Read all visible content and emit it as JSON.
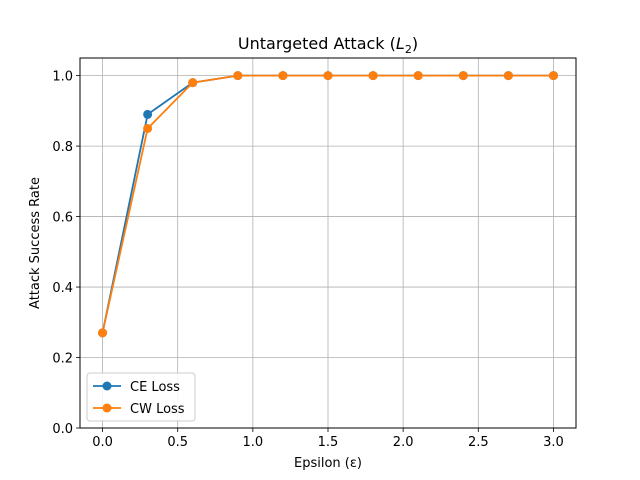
{
  "chart_data": {
    "type": "line",
    "title": "Untargeted Attack (L₂)",
    "title_parts": {
      "prefix": "Untargeted Attack (",
      "math_base": "L",
      "math_sub": "2",
      "suffix": ")"
    },
    "xlabel": "Epsilon (ε)",
    "ylabel": "Attack Success Rate",
    "x": [
      0.0,
      0.3,
      0.6,
      0.9,
      1.2,
      1.5,
      1.8,
      2.1,
      2.4,
      2.7,
      3.0
    ],
    "series": [
      {
        "name": "CE Loss",
        "color": "#1f77b4",
        "values": [
          0.27,
          0.89,
          0.98,
          1.0,
          1.0,
          1.0,
          1.0,
          1.0,
          1.0,
          1.0,
          1.0
        ]
      },
      {
        "name": "CW Loss",
        "color": "#ff7f0e",
        "values": [
          0.27,
          0.85,
          0.98,
          1.0,
          1.0,
          1.0,
          1.0,
          1.0,
          1.0,
          1.0,
          1.0
        ]
      }
    ],
    "xlim": [
      -0.15,
      3.15
    ],
    "ylim": [
      0.0,
      1.05
    ],
    "xticks": [
      0.0,
      0.5,
      1.0,
      1.5,
      2.0,
      2.5,
      3.0
    ],
    "xtick_labels": [
      "0.0",
      "0.5",
      "1.0",
      "1.5",
      "2.0",
      "2.5",
      "3.0"
    ],
    "yticks": [
      0.0,
      0.2,
      0.4,
      0.6,
      0.8,
      1.0
    ],
    "ytick_labels": [
      "0.0",
      "0.2",
      "0.4",
      "0.6",
      "0.8",
      "1.0"
    ],
    "grid": true,
    "legend_position": "lower-left",
    "marker": "circle"
  }
}
